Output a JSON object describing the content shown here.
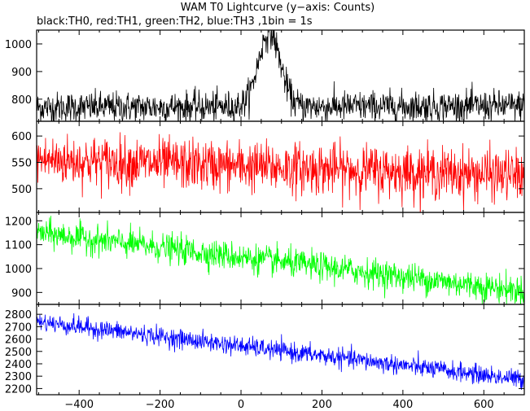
{
  "chart_data": {
    "type": "line",
    "title": "WAM T0 Lightcurve (y−axis: Counts)",
    "subtitle": "black:TH0, red:TH1, green:TH2, blue:TH3 ,1bin = 1s",
    "x_range": [
      -505,
      700
    ],
    "x_ticks": [
      -400,
      -200,
      0,
      200,
      400,
      600
    ],
    "x_tick_labels": [
      "−400",
      "−200",
      "0",
      "200",
      "400",
      "600"
    ],
    "bin_seconds": 1,
    "panels": [
      {
        "series_name": "TH0",
        "color": "#000000",
        "ylim": [
          720,
          1050
        ],
        "y_ticks": [
          800,
          900,
          1000
        ],
        "y_tick_labels": [
          "800",
          "900",
          "1000"
        ],
        "baseline_start": 770,
        "baseline_end": 775,
        "noise": 28,
        "peak": {
          "x": 70,
          "height": 270,
          "width": 38
        }
      },
      {
        "series_name": "TH1",
        "color": "#ff0000",
        "ylim": [
          455,
          628
        ],
        "y_ticks": [
          500,
          550,
          600
        ],
        "y_tick_labels": [
          "500",
          "550",
          "600"
        ],
        "baseline_start": 555,
        "baseline_end": 525,
        "noise": 24
      },
      {
        "series_name": "TH2",
        "color": "#00ff00",
        "ylim": [
          850,
          1235
        ],
        "y_ticks": [
          900,
          1000,
          1100,
          1200
        ],
        "y_tick_labels": [
          "900",
          "1000",
          "1100",
          "1200"
        ],
        "baseline_start": 1150,
        "baseline_end": 905,
        "noise": 30
      },
      {
        "series_name": "TH3",
        "color": "#0000ff",
        "ylim": [
          2150,
          2880
        ],
        "y_ticks": [
          2200,
          2300,
          2400,
          2500,
          2600,
          2700,
          2800
        ],
        "y_tick_labels": [
          "2200",
          "2300",
          "2400",
          "2500",
          "2600",
          "2700",
          "2800"
        ],
        "baseline_start": 2740,
        "baseline_end": 2270,
        "noise": 38
      }
    ]
  }
}
